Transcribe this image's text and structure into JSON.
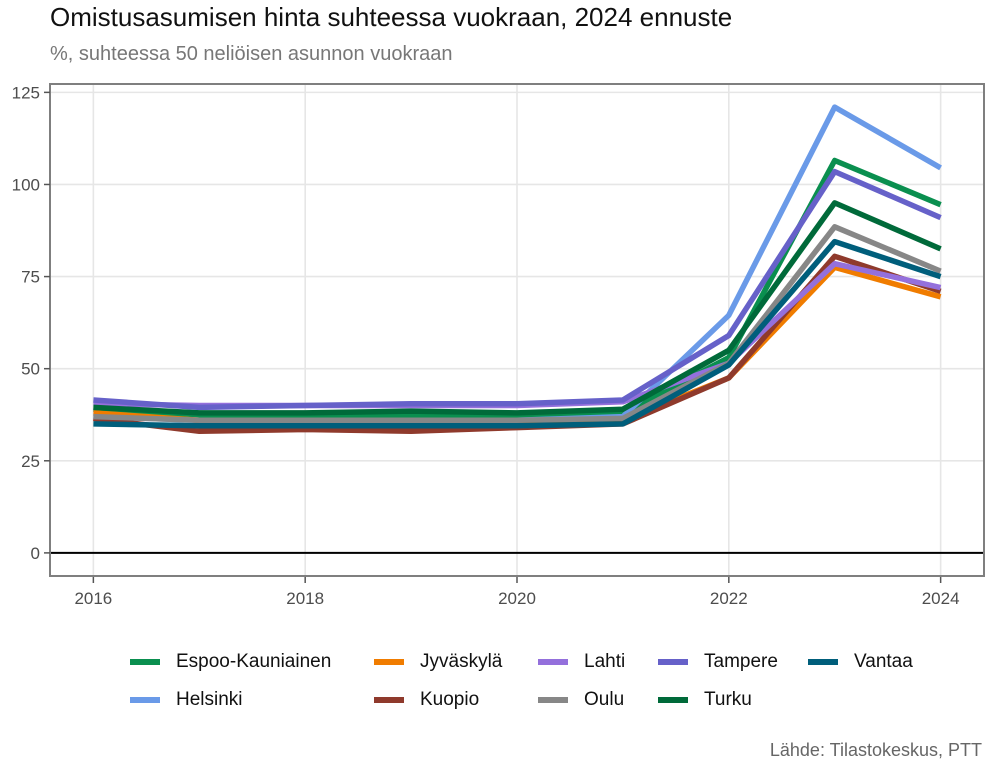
{
  "title": "Omistusasumisen hinta suhteessa vuokraan, 2024 ennuste",
  "subtitle": "%, suhteessa 50 neliöisen asunnon vuokraan",
  "source": "Lähde: Tilastokeskus, PTT",
  "chart_data": {
    "type": "line",
    "title": "Omistusasumisen hinta suhteessa vuokraan, 2024 ennuste",
    "subtitle": "%, suhteessa 50 neliöisen asunnon vuokraan",
    "xlabel": "",
    "ylabel": "",
    "x": [
      2016,
      2017,
      2018,
      2019,
      2020,
      2021,
      2022,
      2023,
      2024
    ],
    "xlim": [
      2015.6,
      2024.4
    ],
    "ylim": [
      -6,
      127
    ],
    "xticks": [
      "2016",
      "2018",
      "2020",
      "2022",
      "2024"
    ],
    "yticks": [
      "0",
      "25",
      "50",
      "75",
      "100",
      "125"
    ],
    "grid": true,
    "legend_position": "bottom",
    "series": [
      {
        "name": "Espoo-Kauniainen",
        "color": "#0a8f4f",
        "values": [
          39,
          37.5,
          37,
          37.5,
          37,
          38,
          53,
          106.5,
          94.5
        ]
      },
      {
        "name": "Helsinki",
        "color": "#6a9ae8",
        "values": [
          37,
          36,
          36,
          36,
          36,
          37,
          64.5,
          121,
          104.5
        ]
      },
      {
        "name": "Jyväskylä",
        "color": "#f07c00",
        "values": [
          38,
          36,
          35.5,
          36,
          35.5,
          36,
          47.5,
          77.5,
          69.5
        ]
      },
      {
        "name": "Kuopio",
        "color": "#8f3a2c",
        "values": [
          36.5,
          33,
          33.5,
          33,
          34,
          35,
          47.5,
          80.5,
          71
        ]
      },
      {
        "name": "Lahti",
        "color": "#9470dc",
        "values": [
          40.5,
          40,
          40,
          40,
          40,
          41,
          51.5,
          78.5,
          72
        ]
      },
      {
        "name": "Oulu",
        "color": "#878787",
        "values": [
          37,
          36,
          36,
          36,
          36,
          36.5,
          51.5,
          88.5,
          76.5
        ]
      },
      {
        "name": "Tampere",
        "color": "#6661c9",
        "values": [
          41.5,
          39.5,
          40,
          40.5,
          40.5,
          41.5,
          59,
          103.5,
          91
        ]
      },
      {
        "name": "Turku",
        "color": "#006a3a",
        "values": [
          39.5,
          38,
          38,
          38.5,
          38,
          39,
          55,
          95,
          82.5
        ]
      },
      {
        "name": "Vantaa",
        "color": "#005e7b",
        "values": [
          35,
          34.5,
          34.5,
          34.5,
          34.5,
          35,
          51,
          84.5,
          75
        ]
      }
    ]
  }
}
